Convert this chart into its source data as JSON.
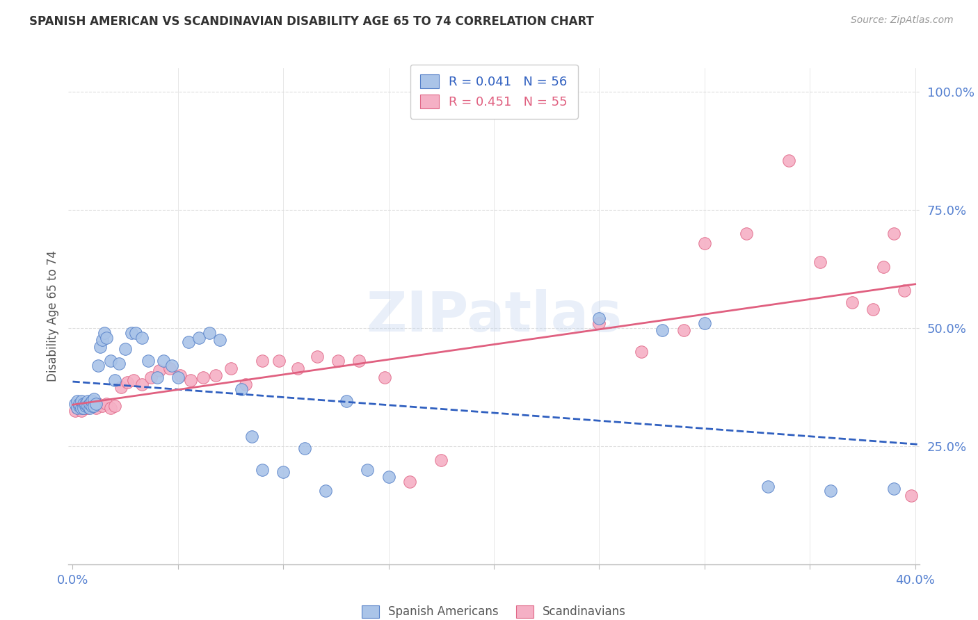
{
  "title": "SPANISH AMERICAN VS SCANDINAVIAN DISABILITY AGE 65 TO 74 CORRELATION CHART",
  "source": "Source: ZipAtlas.com",
  "ylabel": "Disability Age 65 to 74",
  "xlim": [
    0.0,
    0.4
  ],
  "ylim": [
    0.0,
    1.05
  ],
  "watermark": "ZIPatlas",
  "legend_blue_r": "R = 0.041",
  "legend_blue_n": "N = 56",
  "legend_pink_r": "R = 0.451",
  "legend_pink_n": "N = 55",
  "blue_face_color": "#aac4e8",
  "blue_edge_color": "#5580c8",
  "pink_face_color": "#f5b0c5",
  "pink_edge_color": "#e06888",
  "blue_line_color": "#3060c0",
  "pink_line_color": "#e06080",
  "axis_tick_color": "#5580d0",
  "grid_color": "#dddddd",
  "title_color": "#333333",
  "blue_scatter_x": [
    0.001,
    0.002,
    0.002,
    0.003,
    0.003,
    0.004,
    0.004,
    0.005,
    0.005,
    0.006,
    0.006,
    0.007,
    0.007,
    0.008,
    0.008,
    0.009,
    0.009,
    0.01,
    0.01,
    0.011,
    0.012,
    0.013,
    0.014,
    0.015,
    0.016,
    0.018,
    0.02,
    0.022,
    0.025,
    0.028,
    0.03,
    0.033,
    0.036,
    0.04,
    0.043,
    0.047,
    0.05,
    0.055,
    0.06,
    0.065,
    0.07,
    0.08,
    0.085,
    0.09,
    0.1,
    0.11,
    0.12,
    0.13,
    0.14,
    0.15,
    0.25,
    0.28,
    0.3,
    0.33,
    0.36,
    0.39
  ],
  "blue_scatter_y": [
    0.34,
    0.345,
    0.33,
    0.335,
    0.34,
    0.33,
    0.345,
    0.34,
    0.33,
    0.335,
    0.34,
    0.345,
    0.335,
    0.33,
    0.34,
    0.335,
    0.345,
    0.35,
    0.335,
    0.34,
    0.42,
    0.46,
    0.475,
    0.49,
    0.48,
    0.43,
    0.39,
    0.425,
    0.455,
    0.49,
    0.49,
    0.48,
    0.43,
    0.395,
    0.43,
    0.42,
    0.395,
    0.47,
    0.48,
    0.49,
    0.475,
    0.37,
    0.27,
    0.2,
    0.195,
    0.245,
    0.155,
    0.345,
    0.2,
    0.185,
    0.52,
    0.495,
    0.51,
    0.165,
    0.155,
    0.16
  ],
  "pink_scatter_x": [
    0.001,
    0.002,
    0.002,
    0.003,
    0.003,
    0.004,
    0.004,
    0.005,
    0.005,
    0.006,
    0.007,
    0.008,
    0.009,
    0.01,
    0.011,
    0.012,
    0.014,
    0.016,
    0.018,
    0.02,
    0.023,
    0.026,
    0.029,
    0.033,
    0.037,
    0.041,
    0.046,
    0.051,
    0.056,
    0.062,
    0.068,
    0.075,
    0.082,
    0.09,
    0.098,
    0.107,
    0.116,
    0.126,
    0.136,
    0.148,
    0.16,
    0.175,
    0.25,
    0.27,
    0.29,
    0.3,
    0.32,
    0.34,
    0.355,
    0.37,
    0.38,
    0.385,
    0.39,
    0.395,
    0.398
  ],
  "pink_scatter_y": [
    0.325,
    0.335,
    0.33,
    0.33,
    0.34,
    0.325,
    0.335,
    0.33,
    0.34,
    0.33,
    0.33,
    0.335,
    0.34,
    0.335,
    0.33,
    0.34,
    0.335,
    0.34,
    0.33,
    0.335,
    0.375,
    0.385,
    0.39,
    0.38,
    0.395,
    0.41,
    0.415,
    0.4,
    0.39,
    0.395,
    0.4,
    0.415,
    0.38,
    0.43,
    0.43,
    0.415,
    0.44,
    0.43,
    0.43,
    0.395,
    0.175,
    0.22,
    0.51,
    0.45,
    0.495,
    0.68,
    0.7,
    0.855,
    0.64,
    0.555,
    0.54,
    0.63,
    0.7,
    0.58,
    0.145
  ]
}
